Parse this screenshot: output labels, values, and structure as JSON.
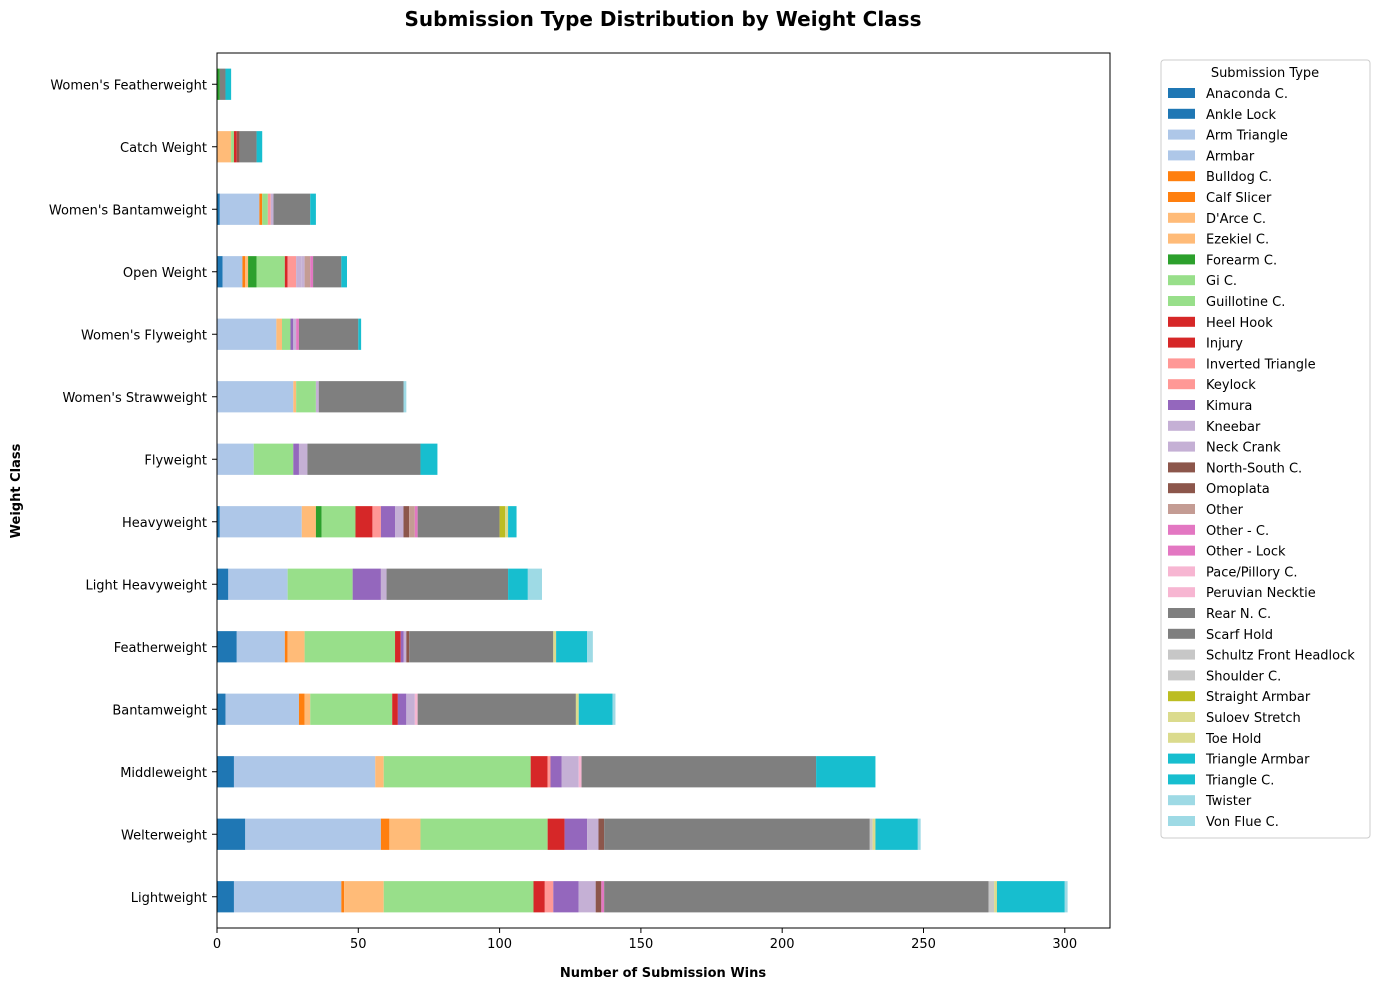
{
  "chart_data": {
    "type": "bar",
    "orientation": "horizontal",
    "stacked": true,
    "title": "Submission Type Distribution by Weight Class",
    "xlabel": "Number of Submission Wins",
    "ylabel": "Weight Class",
    "xlim": [
      0,
      316
    ],
    "xticks": [
      0,
      50,
      100,
      150,
      200,
      250,
      300
    ],
    "grid": false,
    "legend_title": "Submission Type",
    "legend_position": "outside right, top",
    "categories": [
      "Lightweight",
      "Welterweight",
      "Middleweight",
      "Bantamweight",
      "Featherweight",
      "Light Heavyweight",
      "Heavyweight",
      "Flyweight",
      "Women's Strawweight",
      "Women's Flyweight",
      "Open Weight",
      "Women's Bantamweight",
      "Catch Weight",
      "Women's Featherweight"
    ],
    "series": [
      {
        "name": "Anaconda C.",
        "color": "#1f77b4",
        "values": [
          6,
          10,
          6,
          3,
          7,
          4,
          1,
          0,
          0,
          0,
          2,
          1,
          0,
          0
        ]
      },
      {
        "name": "Ankle Lock",
        "color": "#1f77b4",
        "values": [
          0,
          0,
          0,
          0,
          0,
          0,
          0,
          0,
          0,
          0,
          0,
          0,
          0,
          0
        ]
      },
      {
        "name": "Arm Triangle",
        "color": "#aec7e8",
        "values": [
          38,
          48,
          50,
          26,
          17,
          21,
          29,
          13,
          27,
          21,
          7,
          14,
          0,
          0
        ]
      },
      {
        "name": "Armbar",
        "color": "#aec7e8",
        "values": [
          0,
          0,
          0,
          0,
          0,
          0,
          0,
          0,
          0,
          0,
          0,
          0,
          0,
          0
        ]
      },
      {
        "name": "Bulldog C.",
        "color": "#ff7f0e",
        "values": [
          1,
          3,
          0,
          2,
          1,
          0,
          0,
          0,
          0,
          0,
          1,
          1,
          0,
          0
        ]
      },
      {
        "name": "Calf Slicer",
        "color": "#ff7f0e",
        "values": [
          0,
          0,
          0,
          0,
          0,
          0,
          0,
          0,
          0,
          0,
          0,
          0,
          0,
          0
        ]
      },
      {
        "name": "D'Arce C.",
        "color": "#ffbb78",
        "values": [
          14,
          11,
          3,
          2,
          6,
          0,
          5,
          0,
          1,
          2,
          1,
          0,
          5,
          0
        ]
      },
      {
        "name": "Ezekiel C.",
        "color": "#ffbb78",
        "values": [
          0,
          0,
          0,
          0,
          0,
          0,
          0,
          0,
          0,
          0,
          0,
          0,
          0,
          0
        ]
      },
      {
        "name": "Forearm C.",
        "color": "#2ca02c",
        "values": [
          0,
          0,
          0,
          0,
          0,
          0,
          2,
          0,
          0,
          0,
          3,
          0,
          0,
          1
        ]
      },
      {
        "name": "Gi C.",
        "color": "#98df8a",
        "values": [
          0,
          0,
          0,
          0,
          0,
          0,
          0,
          0,
          0,
          0,
          0,
          0,
          0,
          0
        ]
      },
      {
        "name": "Guillotine C.",
        "color": "#98df8a",
        "values": [
          53,
          45,
          52,
          29,
          32,
          23,
          12,
          14,
          7,
          3,
          10,
          2,
          1,
          0
        ]
      },
      {
        "name": "Heel Hook",
        "color": "#d62728",
        "values": [
          4,
          6,
          6,
          2,
          2,
          0,
          6,
          0,
          0,
          0,
          1,
          0,
          0,
          0
        ]
      },
      {
        "name": "Injury",
        "color": "#d62728",
        "values": [
          0,
          0,
          0,
          0,
          0,
          0,
          0,
          0,
          0,
          0,
          0,
          0,
          1,
          0
        ]
      },
      {
        "name": "Inverted Triangle",
        "color": "#ff9896",
        "values": [
          3,
          0,
          1,
          0,
          0,
          0,
          3,
          0,
          0,
          0,
          3,
          1,
          0,
          0
        ]
      },
      {
        "name": "Keylock",
        "color": "#ff9896",
        "values": [
          0,
          0,
          0,
          0,
          0,
          0,
          0,
          0,
          0,
          0,
          0,
          0,
          0,
          0
        ]
      },
      {
        "name": "Kimura",
        "color": "#9467bd",
        "values": [
          9,
          8,
          4,
          3,
          1,
          10,
          5,
          2,
          0,
          1,
          0,
          0,
          0,
          0
        ]
      },
      {
        "name": "Kneebar",
        "color": "#c5b0d5",
        "values": [
          6,
          4,
          6,
          3,
          1,
          2,
          3,
          3,
          1,
          1,
          2,
          1,
          0,
          0
        ]
      },
      {
        "name": "Neck Crank",
        "color": "#c5b0d5",
        "values": [
          0,
          0,
          0,
          0,
          0,
          0,
          0,
          0,
          0,
          0,
          1,
          0,
          0,
          0
        ]
      },
      {
        "name": "North-South C.",
        "color": "#8c564b",
        "values": [
          2,
          2,
          0,
          0,
          1,
          0,
          2,
          0,
          0,
          0,
          0,
          0,
          1,
          0
        ]
      },
      {
        "name": "Omoplata",
        "color": "#8c564b",
        "values": [
          0,
          0,
          0,
          0,
          0,
          0,
          0,
          0,
          0,
          0,
          0,
          0,
          0,
          0
        ]
      },
      {
        "name": "Other",
        "color": "#c49c94",
        "values": [
          0,
          0,
          0,
          0,
          0,
          0,
          2,
          0,
          0,
          0,
          2,
          0,
          0,
          0
        ]
      },
      {
        "name": "Other - C.",
        "color": "#e377c2",
        "values": [
          1,
          0,
          0,
          0,
          0,
          0,
          0,
          0,
          0,
          0,
          0,
          0,
          0,
          0
        ]
      },
      {
        "name": "Other - Lock",
        "color": "#e377c2",
        "values": [
          0,
          0,
          0,
          0,
          0,
          0,
          1,
          0,
          0,
          1,
          1,
          0,
          0,
          0
        ]
      },
      {
        "name": "Pace/Pillory C.",
        "color": "#f7b6d2",
        "values": [
          0,
          0,
          1,
          1,
          0,
          0,
          0,
          0,
          0,
          0,
          0,
          0,
          0,
          0
        ]
      },
      {
        "name": "Peruvian Necktie",
        "color": "#f7b6d2",
        "values": [
          0,
          0,
          0,
          0,
          0,
          0,
          0,
          0,
          0,
          0,
          0,
          0,
          0,
          0
        ]
      },
      {
        "name": "Rear N. C.",
        "color": "#7f7f7f",
        "values": [
          136,
          94,
          83,
          56,
          51,
          43,
          29,
          40,
          30,
          21,
          10,
          13,
          6,
          2
        ]
      },
      {
        "name": "Scarf Hold",
        "color": "#7f7f7f",
        "values": [
          0,
          0,
          0,
          0,
          0,
          0,
          0,
          0,
          0,
          0,
          0,
          0,
          0,
          0
        ]
      },
      {
        "name": "Schultz Front Headlock",
        "color": "#c7c7c7",
        "values": [
          2,
          1,
          0,
          0,
          0,
          0,
          0,
          0,
          0,
          0,
          0,
          0,
          0,
          0
        ]
      },
      {
        "name": "Shoulder C.",
        "color": "#c7c7c7",
        "values": [
          0,
          0,
          0,
          0,
          0,
          0,
          0,
          0,
          0,
          0,
          0,
          0,
          0,
          0
        ]
      },
      {
        "name": "Straight Armbar",
        "color": "#bcbd22",
        "values": [
          0,
          0,
          0,
          0,
          0,
          0,
          2,
          0,
          0,
          0,
          0,
          0,
          0,
          0
        ]
      },
      {
        "name": "Suloev Stretch",
        "color": "#dbdb8d",
        "values": [
          1,
          1,
          0,
          1,
          1,
          0,
          1,
          0,
          0,
          0,
          0,
          0,
          0,
          0
        ]
      },
      {
        "name": "Toe Hold",
        "color": "#dbdb8d",
        "values": [
          0,
          0,
          0,
          0,
          0,
          0,
          0,
          0,
          0,
          0,
          0,
          0,
          0,
          0
        ]
      },
      {
        "name": "Triangle Armbar",
        "color": "#17becf",
        "values": [
          0,
          0,
          0,
          0,
          0,
          0,
          0,
          0,
          0,
          0,
          0,
          0,
          0,
          0
        ]
      },
      {
        "name": "Triangle C.",
        "color": "#17becf",
        "values": [
          24,
          15,
          21,
          12,
          11,
          7,
          3,
          6,
          0,
          1,
          2,
          2,
          2,
          2
        ]
      },
      {
        "name": "Twister",
        "color": "#9edae5",
        "values": [
          0,
          0,
          0,
          0,
          0,
          0,
          0,
          0,
          0,
          0,
          0,
          0,
          0,
          0
        ]
      },
      {
        "name": "Von Flue C.",
        "color": "#9edae5",
        "values": [
          1,
          1,
          0,
          1,
          2,
          5,
          0,
          0,
          1,
          0,
          0,
          0,
          0,
          0
        ]
      }
    ]
  }
}
